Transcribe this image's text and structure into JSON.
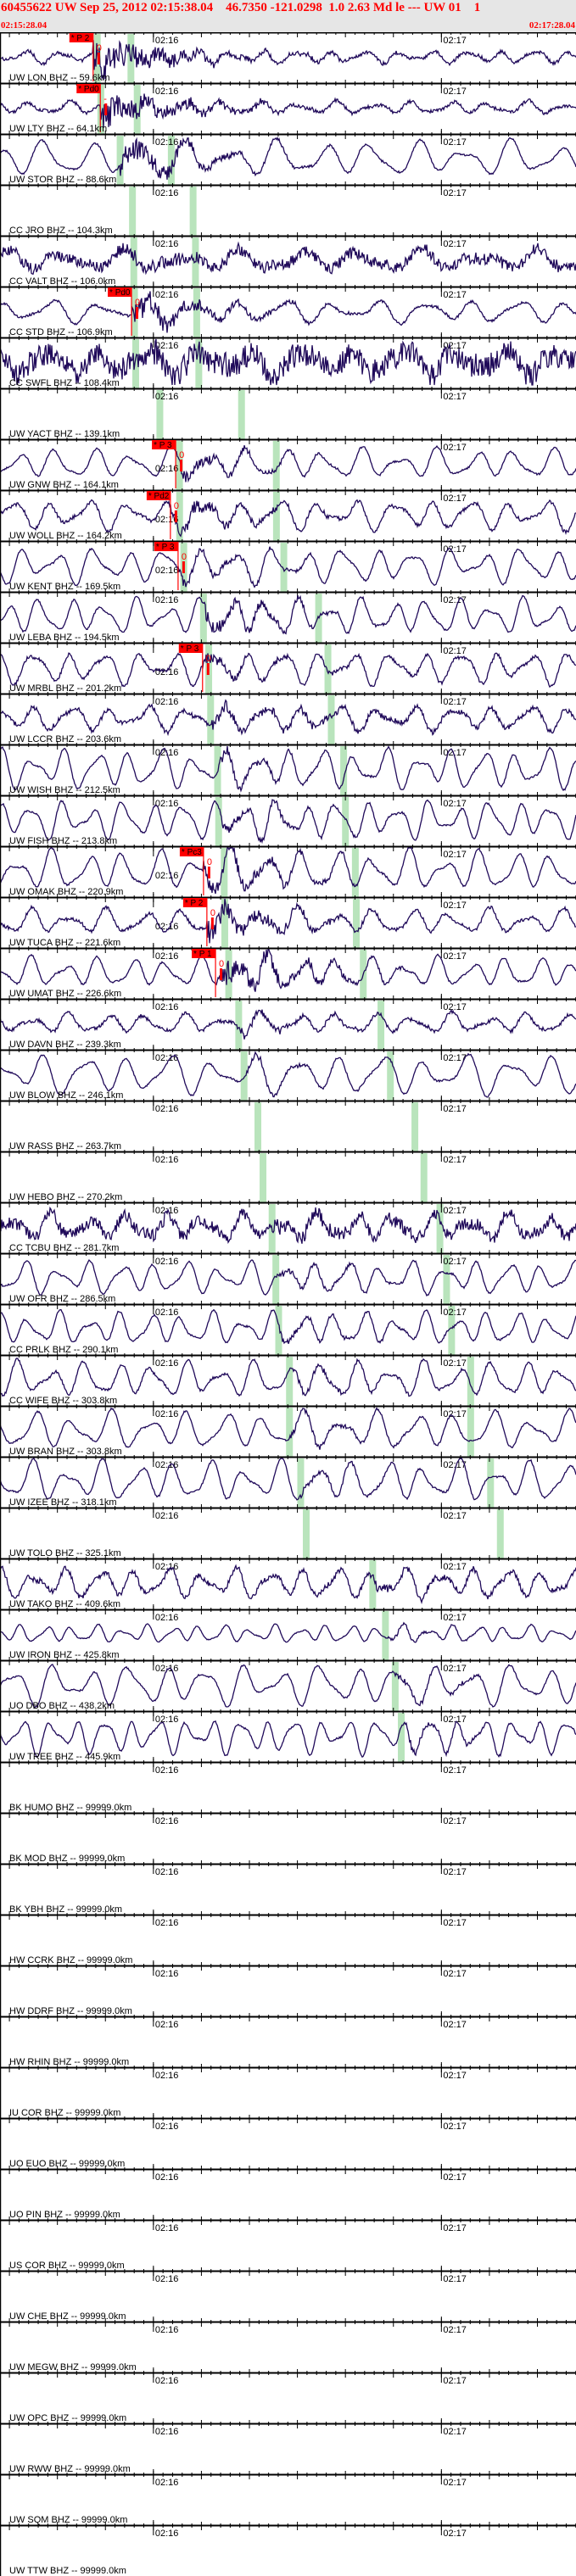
{
  "header": {
    "title": "60455622 UW Sep 25, 2012 02:15:38.04    46.7350 -121.0298  1.0 2.63 Md le --- UW 01    1",
    "start_time": "02:15:28.04",
    "end_time": "02:17:28.04"
  },
  "axis": {
    "window_seconds": 120,
    "origin_offset_s": 10,
    "minute_ticks": [
      {
        "label": "02:16",
        "offset_s": 31.96
      },
      {
        "label": "02:17",
        "offset_s": 91.96
      }
    ]
  },
  "colors": {
    "trace": "#200a5a",
    "pick": "#ff0000",
    "arrival_band": "#b9e4bc",
    "header_bg": "#e6e6e6"
  },
  "stations": [
    {
      "label": "UW LON BHZ -- 59.6km",
      "distance_km": 59.6,
      "trace": true,
      "pick": {
        "label": "* P 2",
        "weight": "0",
        "offset_s": 19.4
      }
    },
    {
      "label": "UW LTY BHZ -- 64.1km",
      "distance_km": 64.1,
      "trace": true,
      "pick": {
        "label": "* Pd0",
        "weight": "-",
        "offset_s": 20.9
      }
    },
    {
      "label": "UW STOR BHZ -- 88.6km",
      "distance_km": 88.6,
      "trace": true
    },
    {
      "label": "CC JRO BHZ -- 104.3km",
      "distance_km": 104.3,
      "trace": false
    },
    {
      "label": "CC VALT BHZ -- 106.0km",
      "distance_km": 106.0,
      "trace": true
    },
    {
      "label": "CC STD BHZ -- 106.9km",
      "distance_km": 106.9,
      "trace": true,
      "pick": {
        "label": "* Pd0",
        "weight": "0",
        "offset_s": 27.4
      }
    },
    {
      "label": "CC SWFL BHZ -- 108.4km",
      "distance_km": 108.4,
      "trace": true
    },
    {
      "label": "UW YACT BHZ -- 139.1km",
      "distance_km": 139.1,
      "trace": false
    },
    {
      "label": "UW GNW BHZ -- 164.1km",
      "distance_km": 164.1,
      "trace": true,
      "pick": {
        "label": "* P 3",
        "weight": "0",
        "offset_s": 36.6
      }
    },
    {
      "label": "UW WOLL BHZ -- 164.2km",
      "distance_km": 164.2,
      "trace": true,
      "pick": {
        "label": "* Pd2",
        "weight": "0",
        "offset_s": 35.5
      }
    },
    {
      "label": "UW KENT BHZ -- 169.5km",
      "distance_km": 169.5,
      "trace": true,
      "pick": {
        "label": "* P 3",
        "weight": "0",
        "offset_s": 37.1
      }
    },
    {
      "label": "UW LEBA BHZ -- 194.5km",
      "distance_km": 194.5,
      "trace": true
    },
    {
      "label": "UW MRBL BHZ -- 201.2km",
      "distance_km": 201.2,
      "trace": true,
      "pick": {
        "label": "* P 3",
        "weight": "0",
        "offset_s": 42.2
      }
    },
    {
      "label": "UW LCCR BHZ -- 203.6km",
      "distance_km": 203.6,
      "trace": true
    },
    {
      "label": "UW WISH BHZ -- 212.5km",
      "distance_km": 212.5,
      "trace": true
    },
    {
      "label": "UW FISH BHZ -- 213.8km",
      "distance_km": 213.8,
      "trace": true
    },
    {
      "label": "UW OMAK BHZ -- 220.9km",
      "distance_km": 220.9,
      "trace": true,
      "pick": {
        "label": "* Pc3",
        "weight": "0",
        "offset_s": 42.4
      }
    },
    {
      "label": "UW TUCA BHZ -- 221.6km",
      "distance_km": 221.6,
      "trace": true,
      "pick": {
        "label": "* P 2",
        "weight": "0",
        "offset_s": 43.1
      }
    },
    {
      "label": "UW UMAT BHZ -- 226.6km",
      "distance_km": 226.6,
      "trace": true,
      "pick": {
        "label": "* P 1",
        "weight": "0",
        "offset_s": 44.9
      }
    },
    {
      "label": "UW DAVN BHZ -- 239.3km",
      "distance_km": 239.3,
      "trace": true
    },
    {
      "label": "UW BLOW BHZ -- 246.1km",
      "distance_km": 246.1,
      "trace": true
    },
    {
      "label": "UW RASS BHZ -- 263.7km",
      "distance_km": 263.7,
      "trace": false
    },
    {
      "label": "UW HEBO BHZ -- 270.2km",
      "distance_km": 270.2,
      "trace": false
    },
    {
      "label": "CC TCBU BHZ -- 281.7km",
      "distance_km": 281.7,
      "trace": true
    },
    {
      "label": "UW OFR BHZ -- 286.5km",
      "distance_km": 286.5,
      "trace": true
    },
    {
      "label": "CC PRLK BHZ -- 290.1km",
      "distance_km": 290.1,
      "trace": true
    },
    {
      "label": "CC WIFE BHZ -- 303.8km",
      "distance_km": 303.8,
      "trace": true
    },
    {
      "label": "UW BRAN BHZ -- 303.8km",
      "distance_km": 303.8,
      "trace": true
    },
    {
      "label": "UW IZEE BHZ -- 318.1km",
      "distance_km": 318.1,
      "trace": true
    },
    {
      "label": "UW TOLO BHZ -- 325.1km",
      "distance_km": 325.1,
      "trace": false
    },
    {
      "label": "UW TAKO BHZ -- 409.6km",
      "distance_km": 409.6,
      "trace": true
    },
    {
      "label": "UW IRON BHZ -- 425.8km",
      "distance_km": 425.8,
      "trace": true
    },
    {
      "label": "UO DBO BHZ -- 438.2km",
      "distance_km": 438.2,
      "trace": true
    },
    {
      "label": "UW TREE BHZ -- 445.9km",
      "distance_km": 445.9,
      "trace": true
    },
    {
      "label": "BK HUMO BHZ -- 99999.0km",
      "distance_km": 99999.0,
      "trace": false
    },
    {
      "label": "BK MOD BHZ -- 99999.0km",
      "distance_km": 99999.0,
      "trace": false
    },
    {
      "label": "BK YBH BHZ -- 99999.0km",
      "distance_km": 99999.0,
      "trace": false
    },
    {
      "label": "HW CCRK BHZ -- 99999.0km",
      "distance_km": 99999.0,
      "trace": false
    },
    {
      "label": "HW DDRF BHZ -- 99999.0km",
      "distance_km": 99999.0,
      "trace": false
    },
    {
      "label": "HW RHIN BHZ -- 99999.0km",
      "distance_km": 99999.0,
      "trace": false
    },
    {
      "label": "IU COR BHZ -- 99999.0km",
      "distance_km": 99999.0,
      "trace": false
    },
    {
      "label": "UO EUO BHZ -- 99999.0km",
      "distance_km": 99999.0,
      "trace": false
    },
    {
      "label": "UO PIN BHZ -- 99999.0km",
      "distance_km": 99999.0,
      "trace": false
    },
    {
      "label": "US COR BHZ -- 99999.0km",
      "distance_km": 99999.0,
      "trace": false
    },
    {
      "label": "UW CHE BHZ -- 99999.0km",
      "distance_km": 99999.0,
      "trace": false
    },
    {
      "label": "UW MEGW BHZ -- 99999.0km",
      "distance_km": 99999.0,
      "trace": false
    },
    {
      "label": "UW OPC BHZ -- 99999.0km",
      "distance_km": 99999.0,
      "trace": false
    },
    {
      "label": "UW RWW BHZ -- 99999.0km",
      "distance_km": 99999.0,
      "trace": false
    },
    {
      "label": "UW SQM BHZ -- 99999.0km",
      "distance_km": 99999.0,
      "trace": false
    },
    {
      "label": "UW TTW BHZ -- 99999.0km",
      "distance_km": 99999.0,
      "trace": false
    }
  ]
}
